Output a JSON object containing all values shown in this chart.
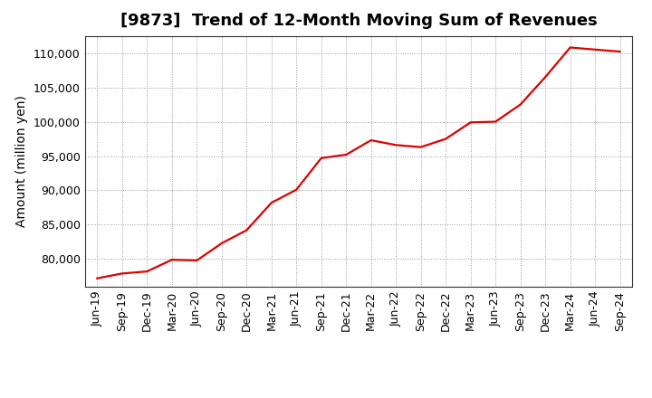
{
  "title": "[9873]  Trend of 12-Month Moving Sum of Revenues",
  "ylabel": "Amount (million yen)",
  "line_color": "#dd0000",
  "background_color": "#ffffff",
  "plot_bg_color": "#ffffff",
  "grid_color": "#999999",
  "x_labels": [
    "Jun-19",
    "Sep-19",
    "Dec-19",
    "Mar-20",
    "Jun-20",
    "Sep-20",
    "Dec-20",
    "Mar-21",
    "Jun-21",
    "Sep-21",
    "Dec-21",
    "Mar-22",
    "Jun-22",
    "Sep-22",
    "Dec-22",
    "Mar-23",
    "Jun-23",
    "Sep-23",
    "Dec-23",
    "Mar-24",
    "Jun-24",
    "Sep-24"
  ],
  "y_values": [
    77200,
    77900,
    78200,
    79900,
    79800,
    82300,
    84200,
    88200,
    90100,
    94700,
    95200,
    97300,
    96600,
    96300,
    97500,
    99900,
    100000,
    102500,
    106500,
    110800,
    110500,
    110200
  ],
  "ylim": [
    76000,
    112500
  ],
  "yticks": [
    80000,
    85000,
    90000,
    95000,
    100000,
    105000,
    110000
  ],
  "title_fontsize": 13,
  "label_fontsize": 10,
  "tick_fontsize": 9,
  "linewidth": 1.6
}
